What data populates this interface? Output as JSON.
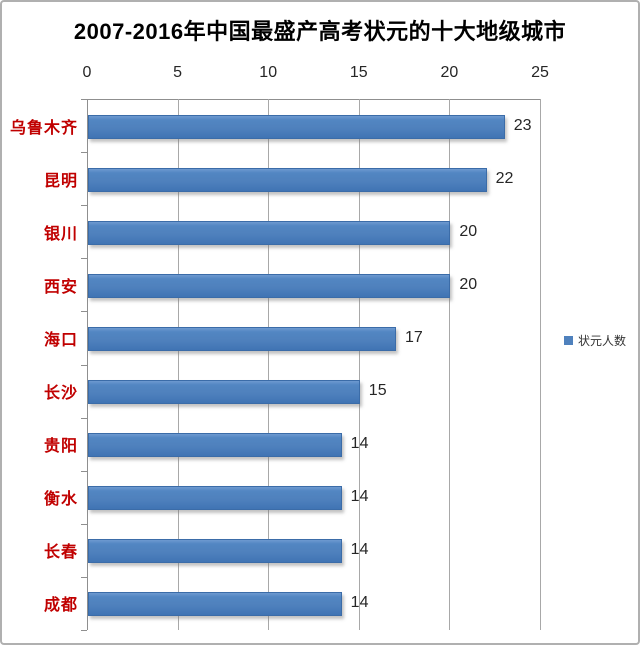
{
  "title": "2007-2016年中国最盛产高考状元的十大地级城市",
  "legend": {
    "label": "状元人数"
  },
  "colors": {
    "bar": "#4f81bd",
    "bar_border": "#3b6ca8",
    "category_label": "#c00000",
    "gridline": "#a8a8a8",
    "axis": "#8f8f8f",
    "value_label": "#262626",
    "frame_border": "#b0b0b0"
  },
  "chart_data": {
    "type": "bar",
    "orientation": "horizontal",
    "title": "2007-2016年中国最盛产高考状元的十大地级城市",
    "series_name": "状元人数",
    "categories": [
      "乌鲁木齐",
      "昆明",
      "银川",
      "西安",
      "海口",
      "长沙",
      "贵阳",
      "衡水",
      "长春",
      "成都"
    ],
    "values": [
      23,
      22,
      20,
      20,
      17,
      15,
      14,
      14,
      14,
      14
    ],
    "data_labels": [
      23,
      22,
      20,
      20,
      17,
      15,
      14,
      14,
      14,
      14
    ],
    "xlabel": "",
    "ylabel": "",
    "xlim": [
      0,
      25
    ],
    "x_ticks": [
      0,
      5,
      10,
      15,
      20,
      25
    ],
    "x_axis_position": "top",
    "grid": true,
    "legend_position": "right"
  }
}
